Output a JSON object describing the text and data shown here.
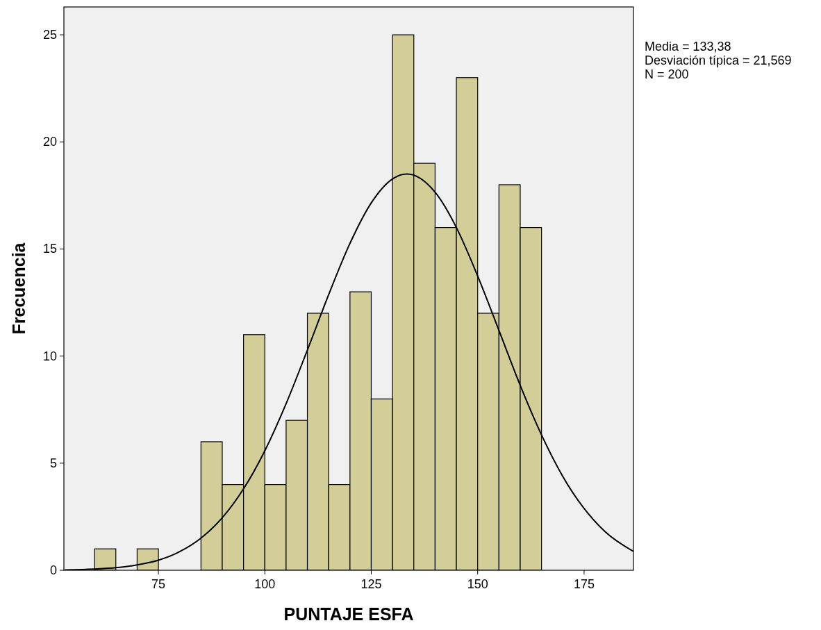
{
  "chart_data": {
    "type": "histogram",
    "xlabel": "PUNTAJE ESFA",
    "ylabel": "Frecuencia",
    "annotations": [
      "Media = 133,38",
      "Desviación típica = 21,569",
      "N = 200"
    ],
    "bins": [
      60,
      65,
      70,
      75,
      80,
      85,
      90,
      95,
      100,
      105,
      110,
      115,
      120,
      125,
      130,
      135,
      140,
      145,
      150,
      155,
      160,
      165
    ],
    "series": [
      {
        "color": "#d3ce97",
        "values": [
          1,
          0,
          1,
          0,
          0,
          6,
          4,
          11,
          4,
          7,
          12,
          4,
          13,
          8,
          25,
          19,
          16,
          23,
          12,
          18,
          16
        ]
      },
      {
        "type": "line",
        "color": "#000000",
        "x": [
          53,
          60,
          65,
          70,
          75,
          80,
          85,
          90,
          95,
          100,
          105,
          110,
          115,
          120,
          125,
          130,
          133.4,
          140,
          145,
          150,
          155,
          160,
          165,
          170,
          180,
          186.6
        ],
        "values": [
          0.02,
          0.06,
          0.12,
          0.25,
          0.47,
          0.87,
          1.5,
          2.45,
          3.8,
          5.58,
          7.78,
          10.28,
          12.87,
          15.26,
          17.15,
          18.27,
          18.5,
          17.65,
          16.0,
          13.74,
          11.2,
          8.63,
          6.32,
          4.38,
          1.79,
          0.88
        ]
      }
    ],
    "xlim": [
      52.8,
      186.6
    ],
    "xticks": [
      75,
      100,
      125,
      150,
      175
    ],
    "ylim": [
      0,
      26.3
    ],
    "yticks": [
      0,
      5,
      10,
      15,
      20,
      25
    ]
  }
}
